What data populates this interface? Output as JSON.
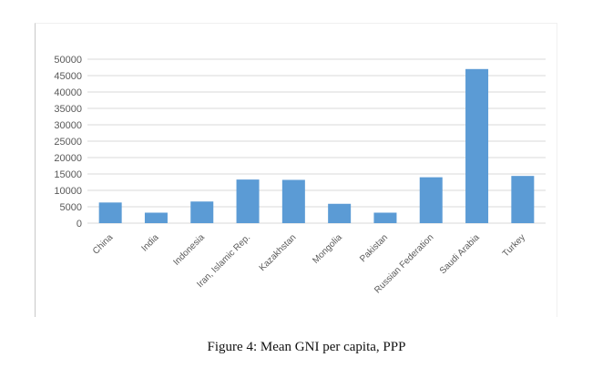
{
  "caption": "Figure 4: Mean GNI per capita, PPP",
  "chart_data": {
    "type": "bar",
    "title": "",
    "xlabel": "",
    "ylabel": "",
    "categories": [
      "China",
      "India",
      "Indonesia",
      "Iran, Islamic Rep.",
      "Kazakhstan",
      "Mongolia",
      "Pakistan",
      "Russian Federation",
      "Saudi Arabia",
      "Turkey"
    ],
    "values": [
      6300,
      3200,
      6600,
      13300,
      13200,
      5900,
      3200,
      14000,
      47000,
      14400
    ],
    "yticks": [
      "0",
      "5000",
      "10000",
      "15000",
      "20000",
      "25000",
      "30000",
      "35000",
      "40000",
      "45000",
      "50000"
    ],
    "ylim": [
      0,
      50000
    ],
    "grid": true,
    "legend": "none",
    "bar_color": "#5b9bd5",
    "grid_color": "#d9d9d9"
  }
}
